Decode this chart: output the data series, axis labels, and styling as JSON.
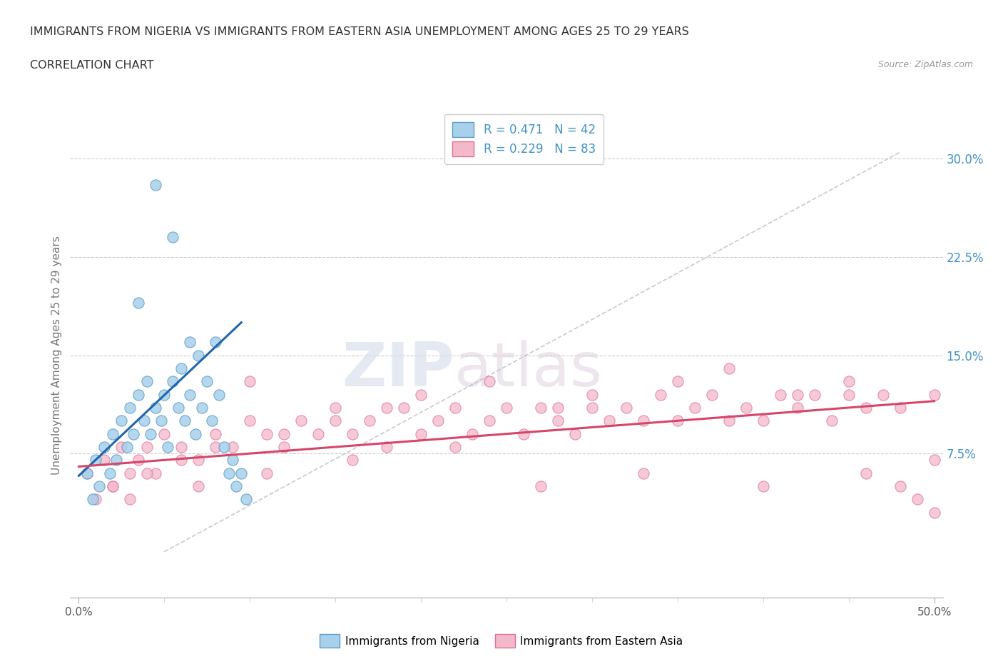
{
  "title_line1": "IMMIGRANTS FROM NIGERIA VS IMMIGRANTS FROM EASTERN ASIA UNEMPLOYMENT AMONG AGES 25 TO 29 YEARS",
  "title_line2": "CORRELATION CHART",
  "source_text": "Source: ZipAtlas.com",
  "watermark_zip": "ZIP",
  "watermark_atlas": "atlas",
  "ylabel": "Unemployment Among Ages 25 to 29 years",
  "right_ytick_labels": [
    "7.5%",
    "15.0%",
    "22.5%",
    "30.0%"
  ],
  "right_ytick_values": [
    0.075,
    0.15,
    0.225,
    0.3
  ],
  "xlim": [
    -0.005,
    0.505
  ],
  "ylim": [
    -0.035,
    0.335
  ],
  "xtick_major_labels": [
    "0.0%",
    "50.0%"
  ],
  "xtick_major_values": [
    0.0,
    0.5
  ],
  "nigeria_color": "#a8d0ea",
  "nigeria_edge_color": "#5b9dc9",
  "nigeria_trend_color": "#2166ac",
  "eastern_asia_color": "#f4b8cb",
  "eastern_asia_edge_color": "#e07090",
  "eastern_asia_trend_color": "#d6456a",
  "nigeria_R": 0.471,
  "nigeria_N": 42,
  "eastern_asia_R": 0.229,
  "eastern_asia_N": 83,
  "legend_label_nigeria": "Immigrants from Nigeria",
  "legend_label_eastern_asia": "Immigrants from Eastern Asia",
  "nigeria_x": [
    0.005,
    0.008,
    0.01,
    0.012,
    0.015,
    0.018,
    0.02,
    0.022,
    0.025,
    0.028,
    0.03,
    0.032,
    0.035,
    0.038,
    0.04,
    0.042,
    0.045,
    0.048,
    0.05,
    0.052,
    0.055,
    0.058,
    0.06,
    0.062,
    0.065,
    0.068,
    0.07,
    0.072,
    0.075,
    0.078,
    0.08,
    0.082,
    0.085,
    0.088,
    0.09,
    0.092,
    0.095,
    0.098,
    0.045,
    0.055,
    0.035,
    0.065
  ],
  "nigeria_y": [
    0.06,
    0.04,
    0.07,
    0.05,
    0.08,
    0.06,
    0.09,
    0.07,
    0.1,
    0.08,
    0.11,
    0.09,
    0.12,
    0.1,
    0.13,
    0.09,
    0.11,
    0.1,
    0.12,
    0.08,
    0.13,
    0.11,
    0.14,
    0.1,
    0.12,
    0.09,
    0.15,
    0.11,
    0.13,
    0.1,
    0.16,
    0.12,
    0.08,
    0.06,
    0.07,
    0.05,
    0.06,
    0.04,
    0.28,
    0.24,
    0.19,
    0.16
  ],
  "eastern_asia_x": [
    0.005,
    0.01,
    0.015,
    0.02,
    0.025,
    0.03,
    0.035,
    0.04,
    0.045,
    0.05,
    0.06,
    0.07,
    0.08,
    0.09,
    0.1,
    0.11,
    0.12,
    0.13,
    0.14,
    0.15,
    0.16,
    0.17,
    0.18,
    0.19,
    0.2,
    0.21,
    0.22,
    0.23,
    0.24,
    0.25,
    0.26,
    0.27,
    0.28,
    0.29,
    0.3,
    0.31,
    0.32,
    0.33,
    0.34,
    0.35,
    0.36,
    0.37,
    0.38,
    0.39,
    0.4,
    0.41,
    0.42,
    0.43,
    0.44,
    0.45,
    0.46,
    0.47,
    0.48,
    0.49,
    0.5,
    0.02,
    0.04,
    0.06,
    0.08,
    0.1,
    0.12,
    0.15,
    0.18,
    0.2,
    0.24,
    0.28,
    0.3,
    0.35,
    0.38,
    0.42,
    0.45,
    0.48,
    0.5,
    0.03,
    0.07,
    0.11,
    0.16,
    0.22,
    0.27,
    0.33,
    0.4,
    0.46,
    0.5
  ],
  "eastern_asia_y": [
    0.06,
    0.04,
    0.07,
    0.05,
    0.08,
    0.06,
    0.07,
    0.08,
    0.06,
    0.09,
    0.08,
    0.07,
    0.09,
    0.08,
    0.1,
    0.09,
    0.08,
    0.1,
    0.09,
    0.11,
    0.09,
    0.1,
    0.08,
    0.11,
    0.09,
    0.1,
    0.11,
    0.09,
    0.1,
    0.11,
    0.09,
    0.11,
    0.1,
    0.09,
    0.11,
    0.1,
    0.11,
    0.1,
    0.12,
    0.1,
    0.11,
    0.12,
    0.1,
    0.11,
    0.1,
    0.12,
    0.11,
    0.12,
    0.1,
    0.12,
    0.11,
    0.12,
    0.11,
    0.04,
    0.12,
    0.05,
    0.06,
    0.07,
    0.08,
    0.13,
    0.09,
    0.1,
    0.11,
    0.12,
    0.13,
    0.11,
    0.12,
    0.13,
    0.14,
    0.12,
    0.13,
    0.05,
    0.07,
    0.04,
    0.05,
    0.06,
    0.07,
    0.08,
    0.05,
    0.06,
    0.05,
    0.06,
    0.03
  ],
  "nigeria_trend_x0": 0.0,
  "nigeria_trend_x1": 0.095,
  "nigeria_trend_y0": 0.058,
  "nigeria_trend_y1": 0.175,
  "eastern_asia_trend_x0": 0.0,
  "eastern_asia_trend_x1": 0.5,
  "eastern_asia_trend_y0": 0.065,
  "eastern_asia_trend_y1": 0.115,
  "dash_line_x0": 0.05,
  "dash_line_y0": 0.0,
  "dash_line_x1": 0.48,
  "dash_line_y1": 0.305,
  "grid_color": "#cccccc",
  "background_color": "#ffffff",
  "title_color": "#333333",
  "axis_label_color": "#777777",
  "right_axis_label_color": "#4292c6"
}
